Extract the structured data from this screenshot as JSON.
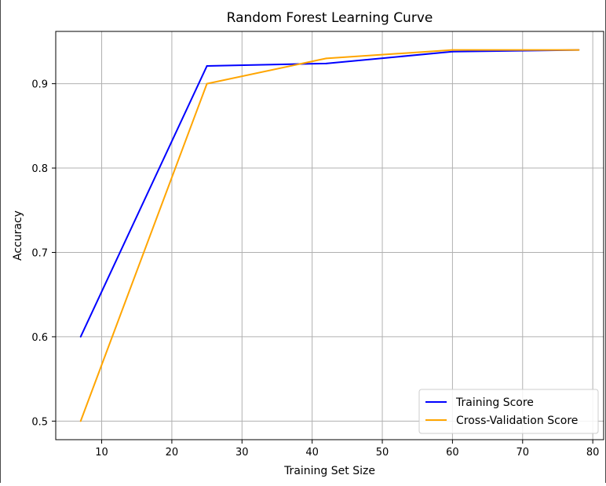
{
  "chart_data": {
    "type": "line",
    "title": "Random Forest Learning Curve",
    "xlabel": "Training Set Size",
    "ylabel": "Accuracy",
    "x": [
      7,
      25,
      42,
      60,
      78
    ],
    "xlim": [
      3.45,
      81.55
    ],
    "ylim": [
      0.478,
      0.962
    ],
    "xticks": [
      10,
      20,
      30,
      40,
      50,
      60,
      70,
      80
    ],
    "yticks": [
      0.5,
      0.6,
      0.7,
      0.8,
      0.9
    ],
    "grid": true,
    "legend_position": "lower-right",
    "series": [
      {
        "name": "Training Score",
        "color": "#0000ff",
        "values": [
          0.6,
          0.921,
          0.924,
          0.938,
          0.94
        ]
      },
      {
        "name": "Cross-Validation Score",
        "color": "#ffa500",
        "values": [
          0.5,
          0.9,
          0.93,
          0.94,
          0.94
        ]
      }
    ]
  }
}
